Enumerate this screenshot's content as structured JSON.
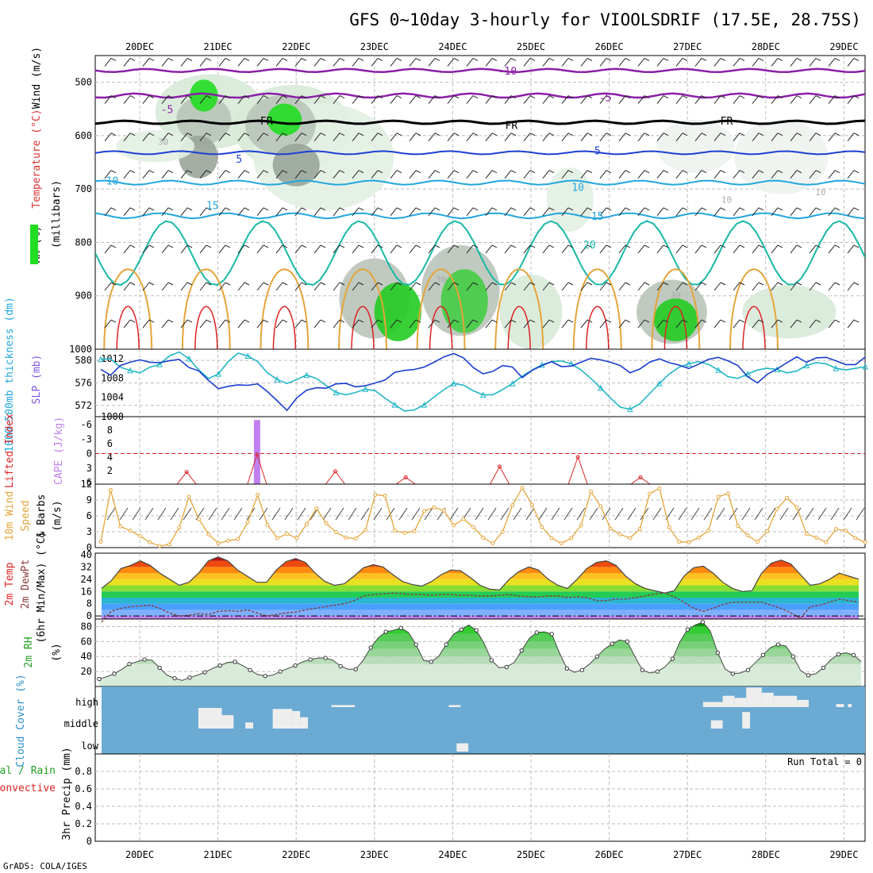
{
  "header": {
    "title": "GFS 0~10day 3-hourly for VIOOLSDRIF (17.5E, 28.75S)",
    "credit": "GrADS: COLA/IGES"
  },
  "colors": {
    "purple": "#8b1fa8",
    "blue": "#1e3fd0",
    "cyan": "#22a6dd",
    "teal": "#18b8a6",
    "orange": "#e5a53a",
    "rhgreen": "#22dd22",
    "cloudbg": "#6aaad3",
    "cloud": "#eeeeee",
    "fontgreen": "#22a022",
    "red": "#dd2222",
    "violet": "#c080f0",
    "gray": "#aaaaaa"
  },
  "chart_data": [
    {
      "type": "line",
      "title": "Temperature (°C) / RH (%) / Wind (m/s) on pressure levels",
      "ylabel": "millibars",
      "axis_labels": [
        "Wind (m/s)",
        "Temperature (°C)",
        "RH (%)",
        "(millibars)"
      ],
      "x_ticks": [
        "20DEC",
        "21DEC",
        "22DEC",
        "23DEC",
        "24DEC",
        "25DEC",
        "26DEC",
        "27DEC",
        "28DEC",
        "29DEC"
      ],
      "x_range_days": [
        -0.5,
        9.3
      ],
      "y_ticks": [
        500,
        600,
        700,
        800,
        900,
        1000
      ],
      "y_range": [
        450,
        1000
      ],
      "isotherm_labels": [
        {
          "text": "-10",
          "d": 4.7,
          "p": 478,
          "color": "purple"
        },
        {
          "text": "-5",
          "d": 0.35,
          "p": 550,
          "color": "purple"
        },
        {
          "text": "-5",
          "d": 5.95,
          "p": 528,
          "color": "purple"
        },
        {
          "text": "FR",
          "d": 1.62,
          "p": 572,
          "color": "black"
        },
        {
          "text": "FR",
          "d": 4.75,
          "p": 580,
          "color": "black"
        },
        {
          "text": "FR",
          "d": 7.5,
          "p": 572,
          "color": "black"
        },
        {
          "text": "5",
          "d": 1.27,
          "p": 643,
          "color": "blue"
        },
        {
          "text": "5",
          "d": 5.85,
          "p": 628,
          "color": "blue"
        },
        {
          "text": "10",
          "d": -0.35,
          "p": 684,
          "color": "cyan"
        },
        {
          "text": "10",
          "d": 5.6,
          "p": 696,
          "color": "cyan"
        },
        {
          "text": "15",
          "d": 0.93,
          "p": 730,
          "color": "cyan"
        },
        {
          "text": "15",
          "d": 5.85,
          "p": 750,
          "color": "cyan"
        },
        {
          "text": "20",
          "d": 5.75,
          "p": 804,
          "color": "teal"
        }
      ],
      "rh_labels": [
        {
          "text": "30",
          "d": 0.3,
          "p": 611
        },
        {
          "text": "30",
          "d": 3.85,
          "p": 869
        },
        {
          "text": "30",
          "d": 6.85,
          "p": 899
        },
        {
          "text": "10",
          "d": 7.5,
          "p": 720
        },
        {
          "text": "10",
          "d": 8.7,
          "p": 706
        }
      ]
    },
    {
      "type": "line",
      "title": "1000-500mb thickness (dm) / SLP (mb)",
      "ylabel": "1000~500mb thickness (dm)",
      "ylabel2": "SLP (mb)",
      "left_ticks": [
        580,
        576,
        572
      ],
      "right_ticks": [
        1012,
        1008,
        1004,
        1000
      ],
      "series": [
        {
          "name": "Thickness",
          "color": "#22b6c6",
          "range": [
            570,
            582
          ],
          "values": [
            580.2,
            580.3,
            578.8,
            578.2,
            577.8,
            578.8,
            579.3,
            580.8,
            581.5,
            580.3,
            578.3,
            576.8,
            577.6,
            579.8,
            581.3,
            580.8,
            579.8,
            577.8,
            576.6,
            575.9,
            576.6,
            577.4,
            576.8,
            575.5,
            574.3,
            573.9,
            574.3,
            574.9,
            574.6,
            573.3,
            572.1,
            571.0,
            571.2,
            572.1,
            573.5,
            574.8,
            575.9,
            575.6,
            574.6,
            573.9,
            573.9,
            574.8,
            575.9,
            577.2,
            578.3,
            579.2,
            579.8,
            579.9,
            579.4,
            578.3,
            576.8,
            575.1,
            573.3,
            571.7,
            571.3,
            572.3,
            574.1,
            575.9,
            577.6,
            578.8,
            579.4,
            579.8,
            579.3,
            578.3,
            577.1,
            576.8,
            577.6,
            578.3,
            578.6,
            578.4,
            577.8,
            578.1,
            579.1,
            579.6,
            579.4,
            578.6,
            578.3,
            578.6,
            578.9
          ]
        },
        {
          "name": "SLP",
          "color": "#1a3ecc",
          "range": [
            1000,
            1014
          ],
          "values": [
            1009.8,
            1008.6,
            1010.6,
            1011.3,
            1011.8,
            1011.3,
            1011.2,
            1011.6,
            1011.9,
            1010.2,
            1009.5,
            1007.5,
            1005.8,
            1006.3,
            1006.6,
            1006.5,
            1006.8,
            1005.2,
            1003.3,
            1001.3,
            1003.9,
            1005.5,
            1006.0,
            1005.9,
            1006.8,
            1006.9,
            1006.2,
            1006.4,
            1007.0,
            1007.6,
            1009.2,
            1009.6,
            1009.8,
            1010.3,
            1011.3,
            1012.4,
            1013.1,
            1012.2,
            1010.2,
            1008.9,
            1009.4,
            1010.6,
            1010.3,
            1008.1,
            1009.6,
            1010.6,
            1011.4,
            1010.4,
            1010.5,
            1011.3,
            1012.1,
            1011.8,
            1011.3,
            1010.6,
            1009.1,
            1009.9,
            1011.3,
            1012.0,
            1011.2,
            1010.7,
            1010.0,
            1010.9,
            1011.9,
            1012.3,
            1011.6,
            1010.6,
            1008.3,
            1007.0,
            1008.8,
            1009.9,
            1011.2,
            1012.4,
            1011.3,
            1012.2,
            1012.3,
            1011.6,
            1010.8,
            1010.8,
            1012.4
          ]
        }
      ]
    },
    {
      "type": "bar",
      "title": "Lifted Index / CAPE (J/kg)",
      "ylabel": "Lifted Index",
      "ylabel2": "CAPE (J/kg)",
      "left_ticks": [
        "-6",
        "-3",
        "0",
        "3",
        "6"
      ],
      "right_ticks": [
        8,
        6,
        4,
        2
      ],
      "cape_bar": {
        "day": 1.5,
        "value": 9.5
      },
      "lifted_index_peaks": [
        {
          "day": 0.6,
          "value": 1.8
        },
        {
          "day": 1.5,
          "value": 4.4
        },
        {
          "day": 2.5,
          "value": 1.9
        },
        {
          "day": 3.4,
          "value": 1.0
        },
        {
          "day": 4.6,
          "value": 2.6
        },
        {
          "day": 5.6,
          "value": 4.0
        },
        {
          "day": 6.4,
          "value": 1.0
        }
      ]
    },
    {
      "type": "line",
      "title": "10m Wind Speed & Barbs (m/s)",
      "ylabel": "(m/s)",
      "ticks": [
        12,
        9,
        6,
        3,
        0
      ],
      "y_range": [
        0,
        12
      ],
      "values": [
        1.1,
        10.9,
        4.0,
        3.2,
        2.2,
        1.0,
        0.3,
        0.6,
        3.8,
        9.6,
        5.4,
        2.5,
        0.8,
        1.3,
        1.6,
        4.8,
        10.0,
        4.3,
        1.8,
        2.6,
        1.8,
        4.4,
        7.4,
        4.6,
        2.9,
        1.9,
        1.7,
        3.3,
        10.0,
        9.8,
        3.2,
        2.8,
        3.1,
        6.9,
        7.6,
        7.0,
        4.2,
        5.4,
        3.9,
        1.9,
        0.8,
        3.0,
        8.0,
        11.3,
        8.1,
        3.9,
        1.8,
        0.8,
        1.8,
        4.2,
        10.6,
        7.8,
        3.6,
        2.5,
        1.8,
        3.5,
        10.2,
        11.2,
        3.8,
        1.1,
        1.0,
        1.9,
        3.2,
        9.6,
        10.2,
        4.1,
        2.3,
        1.1,
        3.1,
        7.3,
        9.4,
        7.6,
        2.6,
        1.9,
        1.0,
        3.5,
        3.2,
        1.8,
        1.0
      ]
    },
    {
      "type": "area",
      "title": "2m Temp / 2m DewPt (6hr Min/Max) (°C)",
      "ticks": [
        40,
        32,
        24,
        16,
        8,
        0
      ],
      "y_range": [
        -2,
        41
      ],
      "temp": [
        18.0,
        23.0,
        31.0,
        33.0,
        36.0,
        33.0,
        28.0,
        24.0,
        20.0,
        22.0,
        28.0,
        36.0,
        38.5,
        36.0,
        30.0,
        26.0,
        22.0,
        22.0,
        30.0,
        35.5,
        37.5,
        35.0,
        28.0,
        22.5,
        20.0,
        21.0,
        26.0,
        31.5,
        33.5,
        32.0,
        27.0,
        22.5,
        20.5,
        19.5,
        22.5,
        27.0,
        30.0,
        29.5,
        25.0,
        20.0,
        17.5,
        17.0,
        24.0,
        29.0,
        32.0,
        30.0,
        24.0,
        20.0,
        18.0,
        24.0,
        31.0,
        35.0,
        36.0,
        33.0,
        26.0,
        21.0,
        18.0,
        16.5,
        15.0,
        16.5,
        26.0,
        31.5,
        32.5,
        28.0,
        22.0,
        18.0,
        16.0,
        16.5,
        28.0,
        34.5,
        36.5,
        34.0,
        27.0,
        20.0,
        21.0,
        24.0,
        28.0,
        26.0,
        24.0
      ],
      "dewpt": [
        -4.0,
        3.0,
        5.0,
        6.0,
        6.5,
        7.0,
        5.0,
        2.0,
        0.0,
        0.5,
        1.5,
        1.0,
        3.0,
        3.5,
        3.0,
        4.0,
        2.0,
        0.0,
        1.0,
        2.0,
        2.5,
        4.0,
        5.0,
        6.0,
        7.0,
        8.0,
        10.0,
        13.0,
        14.0,
        14.5,
        15.0,
        14.5,
        14.0,
        14.0,
        13.5,
        14.0,
        14.0,
        13.5,
        13.5,
        13.0,
        13.0,
        13.5,
        14.0,
        13.0,
        12.5,
        12.5,
        13.0,
        13.0,
        12.0,
        12.5,
        12.0,
        10.0,
        10.0,
        11.0,
        11.0,
        12.0,
        13.0,
        14.5,
        15.0,
        12.5,
        9.0,
        5.0,
        3.0,
        5.0,
        7.5,
        9.0,
        9.0,
        9.0,
        9.0,
        7.0,
        5.0,
        2.0,
        -1.5,
        6.0,
        7.0,
        9.0,
        11.0,
        10.0,
        9.0
      ]
    },
    {
      "type": "area",
      "title": "2m RH (%)",
      "ticks": [
        80,
        60,
        40,
        20
      ],
      "y_range": [
        0,
        90
      ],
      "values": [
        10,
        13,
        17,
        23,
        30,
        33,
        36,
        35,
        25,
        15,
        11,
        8,
        12,
        15,
        19,
        24,
        28,
        32,
        33,
        28,
        22,
        16,
        14,
        15,
        20,
        24,
        28,
        33,
        36,
        38,
        38,
        35,
        27,
        23,
        23,
        35,
        52,
        65,
        73,
        75,
        78,
        72,
        56,
        35,
        33,
        40,
        56,
        70,
        76,
        82,
        75,
        58,
        35,
        25,
        26,
        32,
        48,
        64,
        72,
        73,
        70,
        45,
        24,
        19,
        22,
        30,
        40,
        50,
        57,
        62,
        60,
        40,
        22,
        18,
        20,
        26,
        37,
        60,
        76,
        82,
        86,
        74,
        45,
        23,
        17,
        18,
        22,
        32,
        42,
        52,
        56,
        54,
        40,
        21,
        15,
        17,
        25,
        36,
        43,
        45,
        42,
        33
      ]
    },
    {
      "type": "bar",
      "title": "Cloud Cover (%)",
      "categories": [
        "high",
        "middle",
        "low"
      ],
      "high_days": [
        [
          3.95,
          4.1
        ],
        [
          2.45,
          2.75
        ],
        [
          7.2,
          7.45
        ],
        [
          7.45,
          7.6
        ],
        [
          7.6,
          7.75
        ],
        [
          7.75,
          7.95
        ],
        [
          7.95,
          8.1
        ],
        [
          8.1,
          8.4
        ],
        [
          8.4,
          8.55
        ],
        [
          8.9,
          9.0
        ],
        [
          9.05,
          9.1
        ]
      ],
      "high_values": [
        0.1,
        0.1,
        0.25,
        0.55,
        0.45,
        0.95,
        0.7,
        0.55,
        0.35,
        0.15,
        0.15
      ],
      "middle_days": [
        [
          0.75,
          1.05
        ],
        [
          1.05,
          1.2
        ],
        [
          1.35,
          1.45
        ],
        [
          1.7,
          1.95
        ],
        [
          1.95,
          2.05
        ],
        [
          2.05,
          2.15
        ]
      ],
      "middle_values": [
        1.0,
        0.65,
        0.3,
        0.95,
        0.85,
        0.55
      ],
      "middle_extra_days": [
        [
          7.3,
          7.45
        ],
        [
          7.7,
          7.8
        ]
      ],
      "middle_extra_values": [
        0.4,
        0.8
      ],
      "low_days": [
        [
          4.05,
          4.2
        ]
      ],
      "low_values": [
        0.4
      ]
    },
    {
      "type": "line",
      "title": "3hr Precip (mm)",
      "ylabel": "3hr Precip (mm)",
      "legend": [
        "Total / Rain",
        "Convective"
      ],
      "ticks": [
        0.8,
        0.6,
        0.4,
        0.2,
        0
      ],
      "y_range": [
        0,
        1
      ],
      "run_total": "Run Total = 0"
    }
  ]
}
